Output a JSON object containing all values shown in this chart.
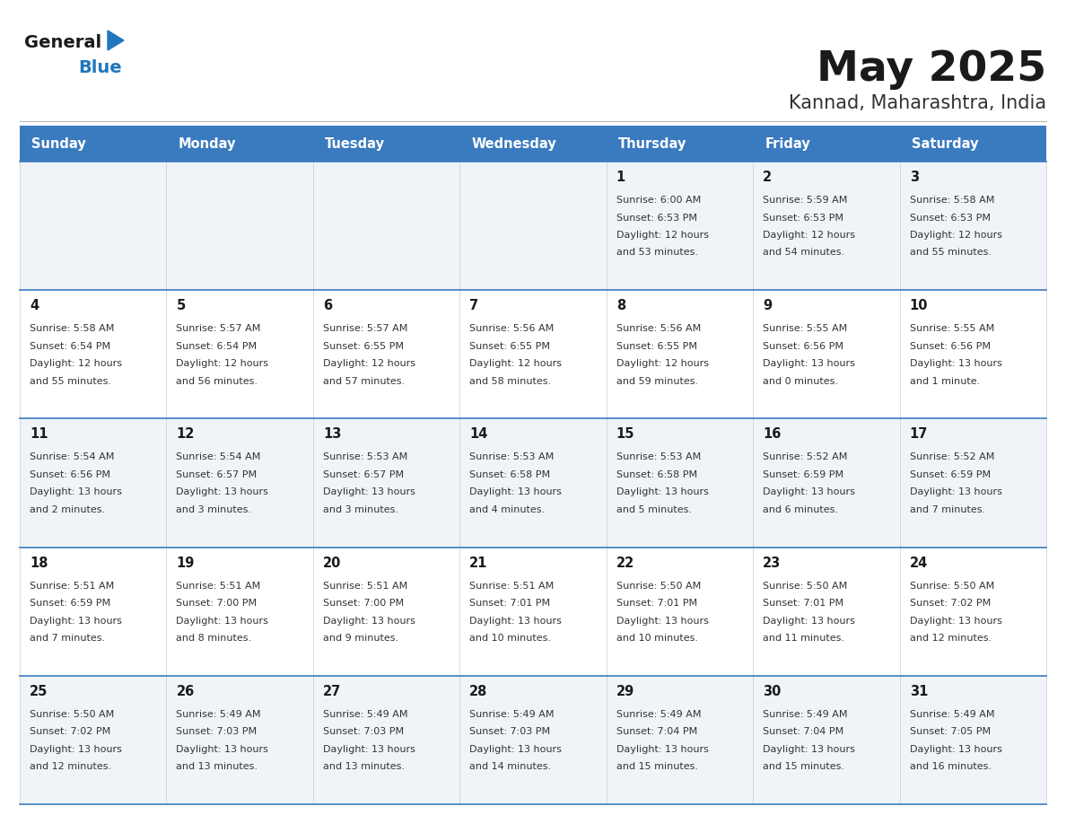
{
  "title": "May 2025",
  "subtitle": "Kannad, Maharashtra, India",
  "header_color": "#3a7abf",
  "header_text_color": "#ffffff",
  "day_names": [
    "Sunday",
    "Monday",
    "Tuesday",
    "Wednesday",
    "Thursday",
    "Friday",
    "Saturday"
  ],
  "bg_color": "#ffffff",
  "cell_bg_even": "#f0f4f8",
  "cell_bg_odd": "#ffffff",
  "border_color": "#3a7abf",
  "title_color": "#1a1a1a",
  "subtitle_color": "#333333",
  "date_color": "#1a1a1a",
  "text_color": "#333333",
  "logo_general_color": "#1a1a1a",
  "logo_blue_color": "#2176bc",
  "logo_triangle_color": "#2176bc",
  "calendar": [
    [
      {
        "day": "",
        "sunrise": "",
        "sunset": "",
        "daylight": ""
      },
      {
        "day": "",
        "sunrise": "",
        "sunset": "",
        "daylight": ""
      },
      {
        "day": "",
        "sunrise": "",
        "sunset": "",
        "daylight": ""
      },
      {
        "day": "",
        "sunrise": "",
        "sunset": "",
        "daylight": ""
      },
      {
        "day": "1",
        "sunrise": "6:00 AM",
        "sunset": "6:53 PM",
        "daylight": "12 hours and 53 minutes."
      },
      {
        "day": "2",
        "sunrise": "5:59 AM",
        "sunset": "6:53 PM",
        "daylight": "12 hours and 54 minutes."
      },
      {
        "day": "3",
        "sunrise": "5:58 AM",
        "sunset": "6:53 PM",
        "daylight": "12 hours and 55 minutes."
      }
    ],
    [
      {
        "day": "4",
        "sunrise": "5:58 AM",
        "sunset": "6:54 PM",
        "daylight": "12 hours and 55 minutes."
      },
      {
        "day": "5",
        "sunrise": "5:57 AM",
        "sunset": "6:54 PM",
        "daylight": "12 hours and 56 minutes."
      },
      {
        "day": "6",
        "sunrise": "5:57 AM",
        "sunset": "6:55 PM",
        "daylight": "12 hours and 57 minutes."
      },
      {
        "day": "7",
        "sunrise": "5:56 AM",
        "sunset": "6:55 PM",
        "daylight": "12 hours and 58 minutes."
      },
      {
        "day": "8",
        "sunrise": "5:56 AM",
        "sunset": "6:55 PM",
        "daylight": "12 hours and 59 minutes."
      },
      {
        "day": "9",
        "sunrise": "5:55 AM",
        "sunset": "6:56 PM",
        "daylight": "13 hours and 0 minutes."
      },
      {
        "day": "10",
        "sunrise": "5:55 AM",
        "sunset": "6:56 PM",
        "daylight": "13 hours and 1 minute."
      }
    ],
    [
      {
        "day": "11",
        "sunrise": "5:54 AM",
        "sunset": "6:56 PM",
        "daylight": "13 hours and 2 minutes."
      },
      {
        "day": "12",
        "sunrise": "5:54 AM",
        "sunset": "6:57 PM",
        "daylight": "13 hours and 3 minutes."
      },
      {
        "day": "13",
        "sunrise": "5:53 AM",
        "sunset": "6:57 PM",
        "daylight": "13 hours and 3 minutes."
      },
      {
        "day": "14",
        "sunrise": "5:53 AM",
        "sunset": "6:58 PM",
        "daylight": "13 hours and 4 minutes."
      },
      {
        "day": "15",
        "sunrise": "5:53 AM",
        "sunset": "6:58 PM",
        "daylight": "13 hours and 5 minutes."
      },
      {
        "day": "16",
        "sunrise": "5:52 AM",
        "sunset": "6:59 PM",
        "daylight": "13 hours and 6 minutes."
      },
      {
        "day": "17",
        "sunrise": "5:52 AM",
        "sunset": "6:59 PM",
        "daylight": "13 hours and 7 minutes."
      }
    ],
    [
      {
        "day": "18",
        "sunrise": "5:51 AM",
        "sunset": "6:59 PM",
        "daylight": "13 hours and 7 minutes."
      },
      {
        "day": "19",
        "sunrise": "5:51 AM",
        "sunset": "7:00 PM",
        "daylight": "13 hours and 8 minutes."
      },
      {
        "day": "20",
        "sunrise": "5:51 AM",
        "sunset": "7:00 PM",
        "daylight": "13 hours and 9 minutes."
      },
      {
        "day": "21",
        "sunrise": "5:51 AM",
        "sunset": "7:01 PM",
        "daylight": "13 hours and 10 minutes."
      },
      {
        "day": "22",
        "sunrise": "5:50 AM",
        "sunset": "7:01 PM",
        "daylight": "13 hours and 10 minutes."
      },
      {
        "day": "23",
        "sunrise": "5:50 AM",
        "sunset": "7:01 PM",
        "daylight": "13 hours and 11 minutes."
      },
      {
        "day": "24",
        "sunrise": "5:50 AM",
        "sunset": "7:02 PM",
        "daylight": "13 hours and 12 minutes."
      }
    ],
    [
      {
        "day": "25",
        "sunrise": "5:50 AM",
        "sunset": "7:02 PM",
        "daylight": "13 hours and 12 minutes."
      },
      {
        "day": "26",
        "sunrise": "5:49 AM",
        "sunset": "7:03 PM",
        "daylight": "13 hours and 13 minutes."
      },
      {
        "day": "27",
        "sunrise": "5:49 AM",
        "sunset": "7:03 PM",
        "daylight": "13 hours and 13 minutes."
      },
      {
        "day": "28",
        "sunrise": "5:49 AM",
        "sunset": "7:03 PM",
        "daylight": "13 hours and 14 minutes."
      },
      {
        "day": "29",
        "sunrise": "5:49 AM",
        "sunset": "7:04 PM",
        "daylight": "13 hours and 15 minutes."
      },
      {
        "day": "30",
        "sunrise": "5:49 AM",
        "sunset": "7:04 PM",
        "daylight": "13 hours and 15 minutes."
      },
      {
        "day": "31",
        "sunrise": "5:49 AM",
        "sunset": "7:05 PM",
        "daylight": "13 hours and 16 minutes."
      }
    ]
  ]
}
